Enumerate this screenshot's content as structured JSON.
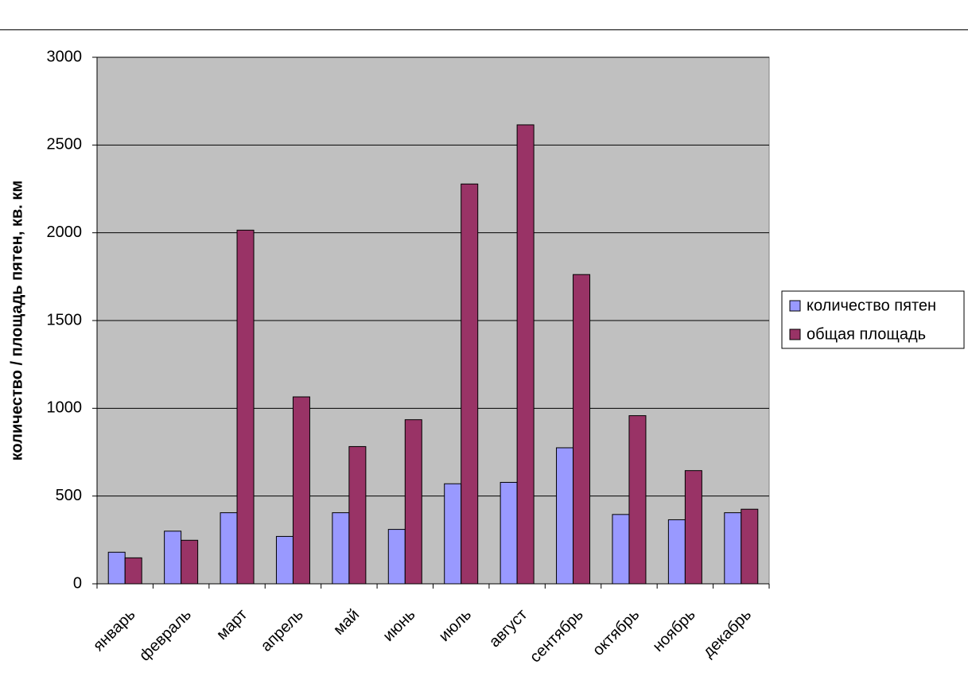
{
  "chart_data": {
    "type": "bar",
    "y_label": "количество / площадь пятен,  кв. км",
    "categories": [
      "январь",
      "февраль",
      "март",
      "апрель",
      "май",
      "июнь",
      "июль",
      "август",
      "сентябрь",
      "октябрь",
      "ноябрь",
      "декабрь"
    ],
    "series": [
      {
        "name": "количество пятен",
        "color": "#9999ff",
        "values": [
          180,
          300,
          405,
          270,
          405,
          310,
          570,
          578,
          775,
          395,
          365,
          405
        ]
      },
      {
        "name": "общая площадь",
        "color": "#993366",
        "values": [
          148,
          248,
          2015,
          1065,
          782,
          935,
          2278,
          2615,
          1762,
          958,
          645,
          425
        ]
      }
    ],
    "ylim": [
      0,
      3000
    ],
    "yticks": [
      0,
      500,
      1000,
      1500,
      2000,
      2500,
      3000
    ],
    "grid": true,
    "legend": "right"
  }
}
